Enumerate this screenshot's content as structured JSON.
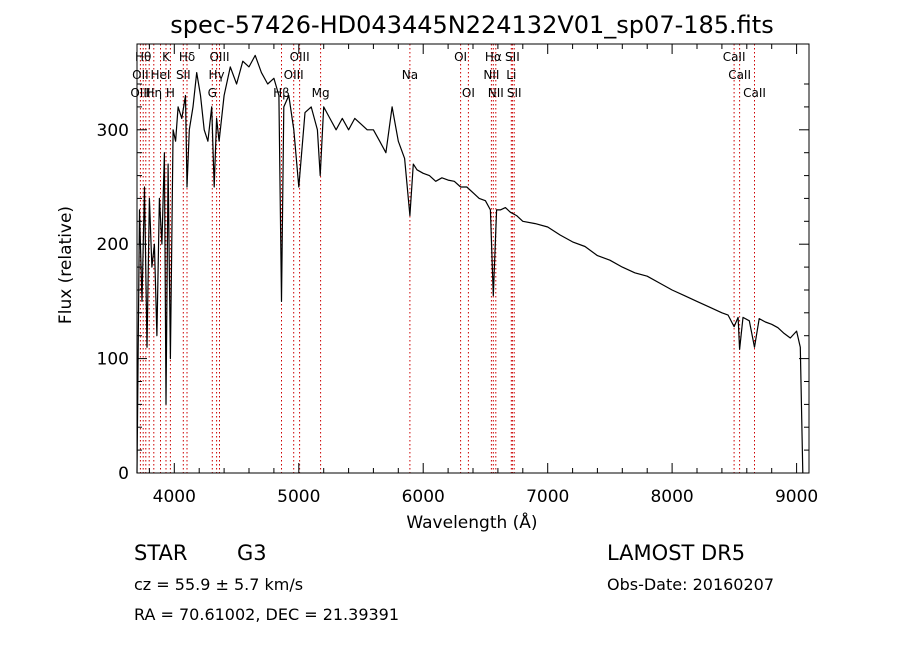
{
  "chart_data": {
    "type": "line",
    "title": "spec-57426-HD043445N224132V01_sp07-185.fits",
    "xlabel": "Wavelength (Å)",
    "ylabel": "Flux (relative)",
    "xlim": [
      3700,
      9100
    ],
    "ylim": [
      0,
      375
    ],
    "x_ticks": [
      4000,
      5000,
      6000,
      7000,
      8000,
      9000
    ],
    "y_ticks": [
      0,
      100,
      200,
      300
    ],
    "series": [
      {
        "x": [
          3700,
          3720,
          3740,
          3760,
          3780,
          3800,
          3820,
          3840,
          3860,
          3880,
          3900,
          3920,
          3933,
          3950,
          3968,
          3990,
          4010,
          4030,
          4060,
          4090,
          4102,
          4120,
          4150,
          4180,
          4210,
          4240,
          4270,
          4300,
          4320,
          4340,
          4360,
          4400,
          4450,
          4500,
          4550,
          4600,
          4650,
          4700,
          4750,
          4800,
          4840,
          4861,
          4880,
          4920,
          4960,
          5000,
          5050,
          5100,
          5150,
          5172,
          5200,
          5250,
          5300,
          5350,
          5400,
          5450,
          5500,
          5550,
          5600,
          5650,
          5700,
          5750,
          5800,
          5850,
          5893,
          5920,
          5950,
          6000,
          6050,
          6100,
          6150,
          6200,
          6250,
          6300,
          6350,
          6400,
          6450,
          6500,
          6540,
          6563,
          6590,
          6620,
          6660,
          6700,
          6750,
          6800,
          6900,
          7000,
          7100,
          7200,
          7300,
          7400,
          7500,
          7600,
          7700,
          7800,
          7900,
          8000,
          8100,
          8200,
          8300,
          8400,
          8450,
          8498,
          8530,
          8542,
          8570,
          8620,
          8662,
          8700,
          8750,
          8800,
          8850,
          8900,
          8950,
          9000,
          9030,
          9050
        ],
        "y": [
          0,
          230,
          150,
          250,
          110,
          240,
          180,
          200,
          120,
          240,
          200,
          280,
          60,
          270,
          100,
          300,
          290,
          320,
          310,
          330,
          250,
          300,
          320,
          350,
          330,
          300,
          290,
          320,
          250,
          310,
          290,
          330,
          355,
          340,
          360,
          355,
          365,
          350,
          340,
          345,
          330,
          150,
          320,
          330,
          300,
          250,
          315,
          320,
          300,
          260,
          320,
          310,
          300,
          310,
          300,
          310,
          305,
          300,
          300,
          290,
          280,
          320,
          290,
          275,
          225,
          270,
          265,
          262,
          260,
          255,
          258,
          256,
          255,
          250,
          250,
          245,
          240,
          238,
          230,
          155,
          230,
          230,
          232,
          228,
          225,
          220,
          218,
          215,
          208,
          202,
          198,
          190,
          186,
          180,
          175,
          172,
          166,
          160,
          155,
          150,
          145,
          140,
          138,
          128,
          136,
          108,
          136,
          133,
          110,
          135,
          132,
          130,
          127,
          122,
          118,
          124,
          110,
          0
        ]
      }
    ],
    "spectral_lines": [
      {
        "label": "Hθ",
        "x": 3750,
        "row": 0
      },
      {
        "label": "K",
        "x": 3933,
        "row": 0
      },
      {
        "label": "Hδ",
        "x": 4102,
        "row": 0
      },
      {
        "label": "OIII",
        "x": 4363,
        "row": 0
      },
      {
        "label": "OIII",
        "x": 5007,
        "row": 0
      },
      {
        "label": "OI",
        "x": 6300,
        "row": 0
      },
      {
        "label": "Hα",
        "x": 6563,
        "row": 0
      },
      {
        "label": "SII",
        "x": 6717,
        "row": 0
      },
      {
        "label": "CaII",
        "x": 8498,
        "row": 0
      },
      {
        "label": "OII",
        "x": 3727,
        "row": 1
      },
      {
        "label": "HeI",
        "x": 3889,
        "row": 1
      },
      {
        "label": "SII",
        "x": 4072,
        "row": 1
      },
      {
        "label": "Hγ",
        "x": 4340,
        "row": 1
      },
      {
        "label": "OIII",
        "x": 4959,
        "row": 1
      },
      {
        "label": "Na",
        "x": 5893,
        "row": 1
      },
      {
        "label": "NII",
        "x": 6548,
        "row": 1
      },
      {
        "label": "Li",
        "x": 6708,
        "row": 1
      },
      {
        "label": "CaII",
        "x": 8542,
        "row": 1
      },
      {
        "label": "OIII",
        "x": 3727,
        "row": 2
      },
      {
        "label": "Hη",
        "x": 3835,
        "row": 2
      },
      {
        "label": "H",
        "x": 3968,
        "row": 2
      },
      {
        "label": "G",
        "x": 4305,
        "row": 2
      },
      {
        "label": "Hβ",
        "x": 4861,
        "row": 2
      },
      {
        "label": "Mg",
        "x": 5175,
        "row": 2
      },
      {
        "label": "OI",
        "x": 6363,
        "row": 2
      },
      {
        "label": "NII",
        "x": 6583,
        "row": 2
      },
      {
        "label": "SII",
        "x": 6731,
        "row": 2
      },
      {
        "label": "CaII",
        "x": 8662,
        "row": 2
      }
    ],
    "line_markers_x": [
      3727,
      3750,
      3771,
      3798,
      3835,
      3889,
      3933,
      3968,
      4072,
      4102,
      4305,
      4340,
      4363,
      4861,
      4959,
      5007,
      5175,
      5893,
      6300,
      6363,
      6548,
      6563,
      6583,
      6708,
      6717,
      6731,
      8498,
      8542,
      8662
    ],
    "line_marker_color": "#cc0000",
    "grid": false,
    "legend": "none"
  },
  "info": {
    "object_class": "STAR",
    "subclass": "G3",
    "cz": "cz = 55.9 ± 5.7 km/s",
    "coords": "RA =  70.61002, DEC =  21.39391",
    "survey": "LAMOST DR5",
    "obs_date": "Obs-Date: 20160207"
  }
}
